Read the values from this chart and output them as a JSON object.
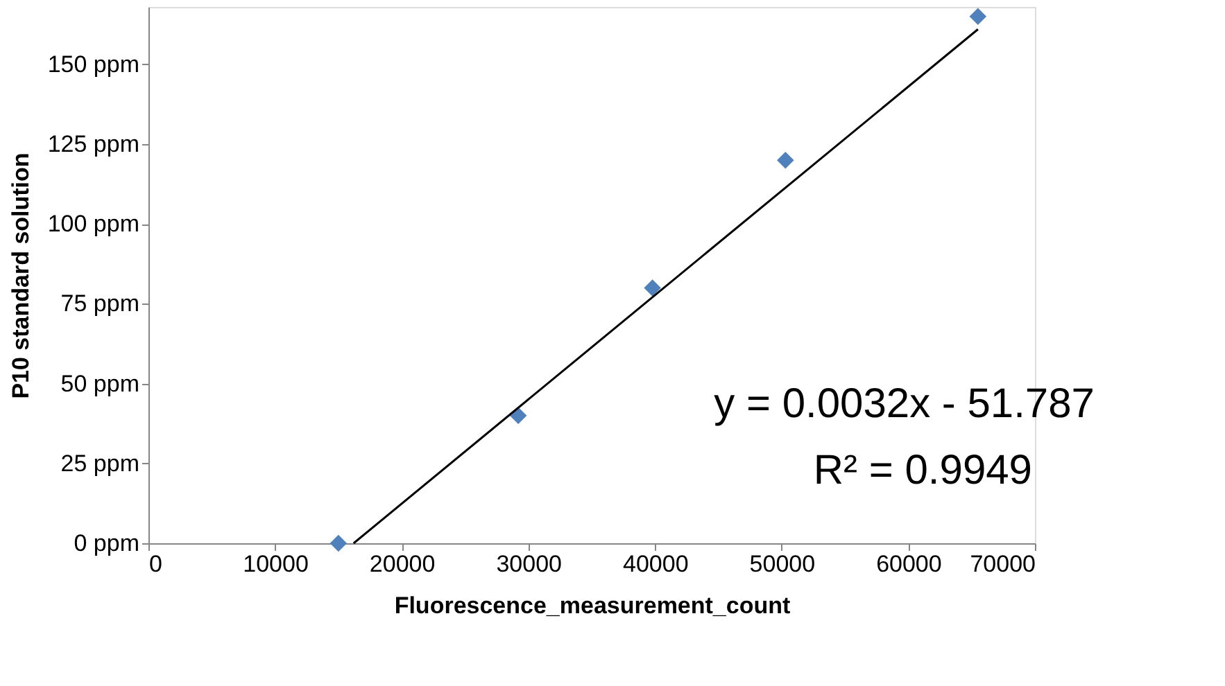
{
  "chart_data": {
    "type": "scatter",
    "xlabel": "Fluorescence_measurement_count",
    "ylabel": "P10 standard solution",
    "series": [
      {
        "color": "#4f81bd",
        "marker": "diamond",
        "x": [
          15000,
          29200,
          39800,
          50300,
          65500
        ],
        "values": [
          0,
          40,
          80,
          120,
          165
        ]
      },
      {
        "type": "line",
        "color": "#000000",
        "marker": "none",
        "x": [
          16200,
          65500
        ],
        "values": [
          0,
          161
        ]
      }
    ],
    "xlim": [
      0,
      70000
    ],
    "xticks": [
      0,
      10000,
      20000,
      30000,
      40000,
      50000,
      60000,
      70000
    ],
    "ylim": [
      0,
      168
    ],
    "yticks": [
      {
        "value": 0,
        "label": "0 ppm"
      },
      {
        "value": 25,
        "label": "25 ppm"
      },
      {
        "value": 50,
        "label": "50 ppm"
      },
      {
        "value": 75,
        "label": "75 ppm"
      },
      {
        "value": 100,
        "label": "100 ppm"
      },
      {
        "value": 125,
        "label": "125 ppm"
      },
      {
        "value": 150,
        "label": "150 ppm"
      }
    ],
    "grid": false,
    "annotations": [
      "y = 0.0032x - 51.787",
      "R² = 0.9949"
    ]
  }
}
